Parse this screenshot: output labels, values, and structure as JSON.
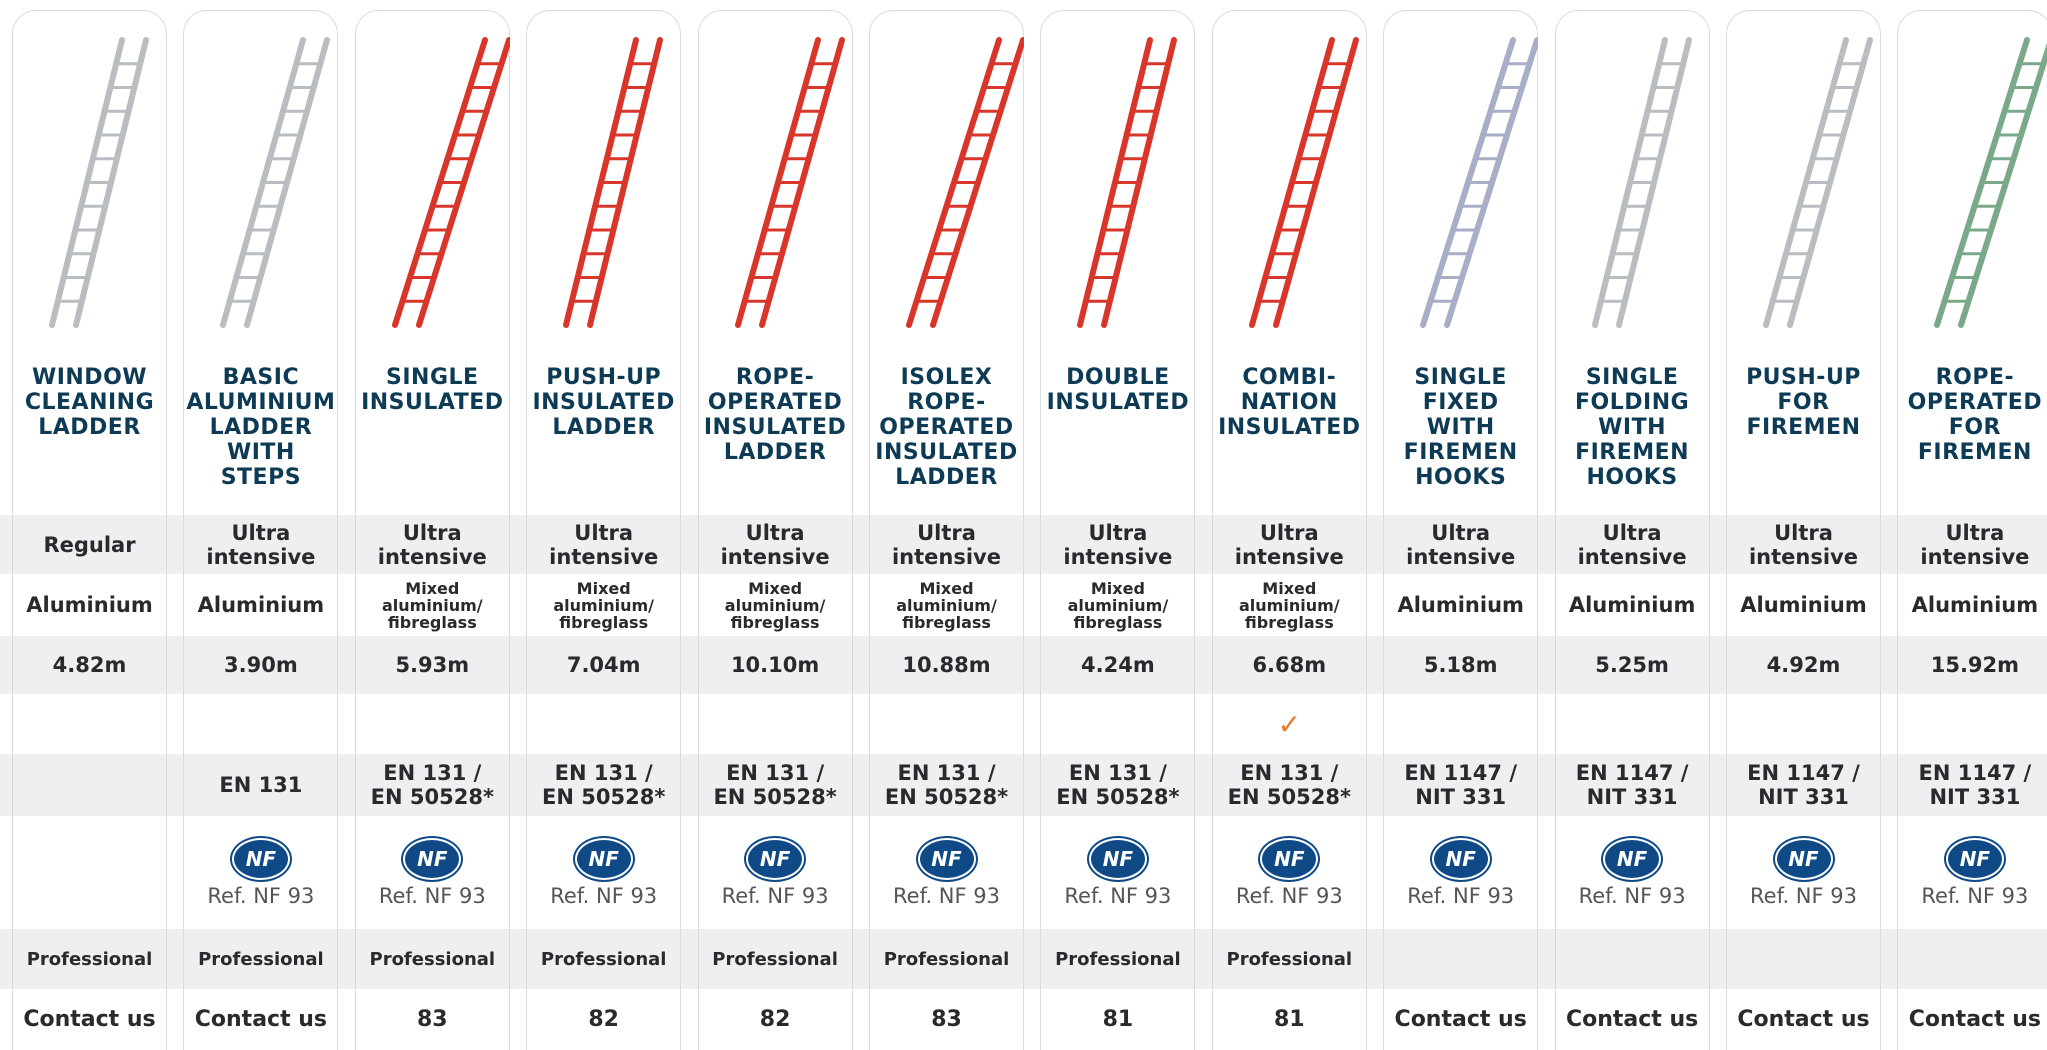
{
  "products": [
    {
      "name": [
        "WINDOW",
        "CLEANING",
        "LADDER"
      ],
      "color": "#b9bcc0",
      "usage": "Regular",
      "material": [
        "Aluminium"
      ],
      "height": "4.82m",
      "check": null,
      "standard": null,
      "certification": null,
      "segment": "Professional",
      "price": "Contact us"
    },
    {
      "name": [
        "BASIC",
        "ALUMINIUM",
        "LADDER",
        "WITH STEPS"
      ],
      "color": "#b9bcc0",
      "usage": "Ultra intensive",
      "material": [
        "Aluminium"
      ],
      "height": "3.90m",
      "check": null,
      "standard": [
        "EN 131"
      ],
      "certification": {
        "logo": "NF",
        "ref": "Ref. NF 93"
      },
      "segment": "Professional",
      "price": "Contact us"
    },
    {
      "name": [
        "SINGLE",
        "INSULATED"
      ],
      "color": "#d8362a",
      "usage": "Ultra intensive",
      "material": [
        "Mixed aluminium/",
        "fibreglass"
      ],
      "height": "5.93m",
      "check": null,
      "standard": [
        "EN 131 /",
        "EN 50528*"
      ],
      "certification": {
        "logo": "NF",
        "ref": "Ref. NF 93"
      },
      "segment": "Professional",
      "price": 83
    },
    {
      "name": [
        "PUSH-UP",
        "INSULATED",
        "LADDER"
      ],
      "color": "#d8362a",
      "usage": "Ultra intensive",
      "material": [
        "Mixed aluminium/",
        "fibreglass"
      ],
      "height": "7.04m",
      "check": null,
      "standard": [
        "EN 131 /",
        "EN 50528*"
      ],
      "certification": {
        "logo": "NF",
        "ref": "Ref. NF 93"
      },
      "segment": "Professional",
      "price": 82
    },
    {
      "name": [
        "ROPE-",
        "OPERATED",
        "INSULATED",
        "LADDER"
      ],
      "color": "#d8362a",
      "usage": "Ultra intensive",
      "material": [
        "Mixed aluminium/",
        "fibreglass"
      ],
      "height": "10.10m",
      "check": null,
      "standard": [
        "EN 131 /",
        "EN 50528*"
      ],
      "certification": {
        "logo": "NF",
        "ref": "Ref. NF 93"
      },
      "segment": "Professional",
      "price": 82
    },
    {
      "name": [
        "ISOLEX",
        "ROPE-",
        "OPERATED",
        "INSULATED",
        "LADDER"
      ],
      "color": "#d8362a",
      "usage": "Ultra intensive",
      "material": [
        "Mixed aluminium/",
        "fibreglass"
      ],
      "height": "10.88m",
      "check": null,
      "standard": [
        "EN 131 /",
        "EN 50528*"
      ],
      "certification": {
        "logo": "NF",
        "ref": "Ref. NF 93"
      },
      "segment": "Professional",
      "price": 83
    },
    {
      "name": [
        "DOUBLE",
        "INSULATED"
      ],
      "color": "#d8362a",
      "usage": "Ultra intensive",
      "material": [
        "Mixed aluminium/",
        "fibreglass"
      ],
      "height": "4.24m",
      "check": null,
      "standard": [
        "EN 131 /",
        "EN 50528*"
      ],
      "certification": {
        "logo": "NF",
        "ref": "Ref. NF 93"
      },
      "segment": "Professional",
      "price": 81
    },
    {
      "name": [
        "COMBI-",
        "NATION",
        "INSULATED"
      ],
      "color": "#d8362a",
      "usage": "Ultra intensive",
      "material": [
        "Mixed aluminium/",
        "fibreglass"
      ],
      "height": "6.68m",
      "check": "✓",
      "standard": [
        "EN 131 /",
        "EN 50528*"
      ],
      "certification": {
        "logo": "NF",
        "ref": "Ref. NF 93"
      },
      "segment": "Professional",
      "price": 81
    },
    {
      "name": [
        "SINGLE",
        "FIXED",
        "WITH",
        "FIREMEN",
        "HOOKS"
      ],
      "color": "#a9aec8",
      "usage": "Ultra intensive",
      "material": [
        "Aluminium"
      ],
      "height": "5.18m",
      "check": null,
      "standard": [
        "EN 1147 /",
        "NIT 331"
      ],
      "certification": {
        "logo": "NF",
        "ref": "Ref. NF 93"
      },
      "segment": null,
      "price": "Contact us"
    },
    {
      "name": [
        "SINGLE",
        "FOLDING",
        "WITH",
        "FIREMEN",
        "HOOKS"
      ],
      "color": "#b9bcc0",
      "usage": "Ultra intensive",
      "material": [
        "Aluminium"
      ],
      "height": "5.25m",
      "check": null,
      "standard": [
        "EN 1147 /",
        "NIT 331"
      ],
      "certification": {
        "logo": "NF",
        "ref": "Ref. NF 93"
      },
      "segment": null,
      "price": "Contact us"
    },
    {
      "name": [
        "PUSH-UP",
        "FOR",
        "FIREMEN"
      ],
      "color": "#b9bcc0",
      "usage": "Ultra intensive",
      "material": [
        "Aluminium"
      ],
      "height": "4.92m",
      "check": null,
      "standard": [
        "EN 1147 /",
        "NIT 331"
      ],
      "certification": {
        "logo": "NF",
        "ref": "Ref. NF 93"
      },
      "segment": null,
      "price": "Contact us"
    },
    {
      "name": [
        "ROPE-",
        "OPERATED",
        "FOR",
        "FIREMEN"
      ],
      "color": "#7aa98a",
      "usage": "Ultra intensive",
      "material": [
        "Aluminium"
      ],
      "height": "15.92m",
      "check": null,
      "standard": [
        "EN 1147 /",
        "NIT 331"
      ],
      "certification": {
        "logo": "NF",
        "ref": "Ref. NF 93"
      },
      "segment": null,
      "price": "Contact us"
    }
  ]
}
